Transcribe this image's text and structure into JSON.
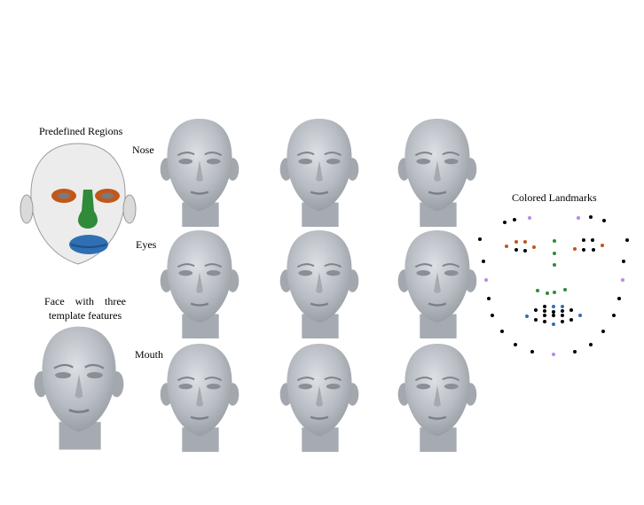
{
  "labels": {
    "predefined_regions": "Predefined Regions",
    "face_template_line1": "Face    with    three",
    "face_template_line2": "template features",
    "row_nose": "Nose",
    "row_eyes": "Eyes",
    "row_mouth": "Mouth",
    "colored_landmarks": "Colored Landmarks"
  },
  "colors": {
    "face_gray": "#aeb2b8",
    "region_nose": "#2f8a3a",
    "region_eyes": "#c2571a",
    "region_mouth": "#2f6fb3",
    "landmark_black": "#000000",
    "landmark_orange": "#c2571a",
    "landmark_green": "#2f8a3a",
    "landmark_blue": "#2f6fb3",
    "landmark_purple": "#b98ae0"
  },
  "grid": {
    "rows": [
      "Nose",
      "Eyes",
      "Mouth"
    ],
    "columns_per_row": 3
  }
}
